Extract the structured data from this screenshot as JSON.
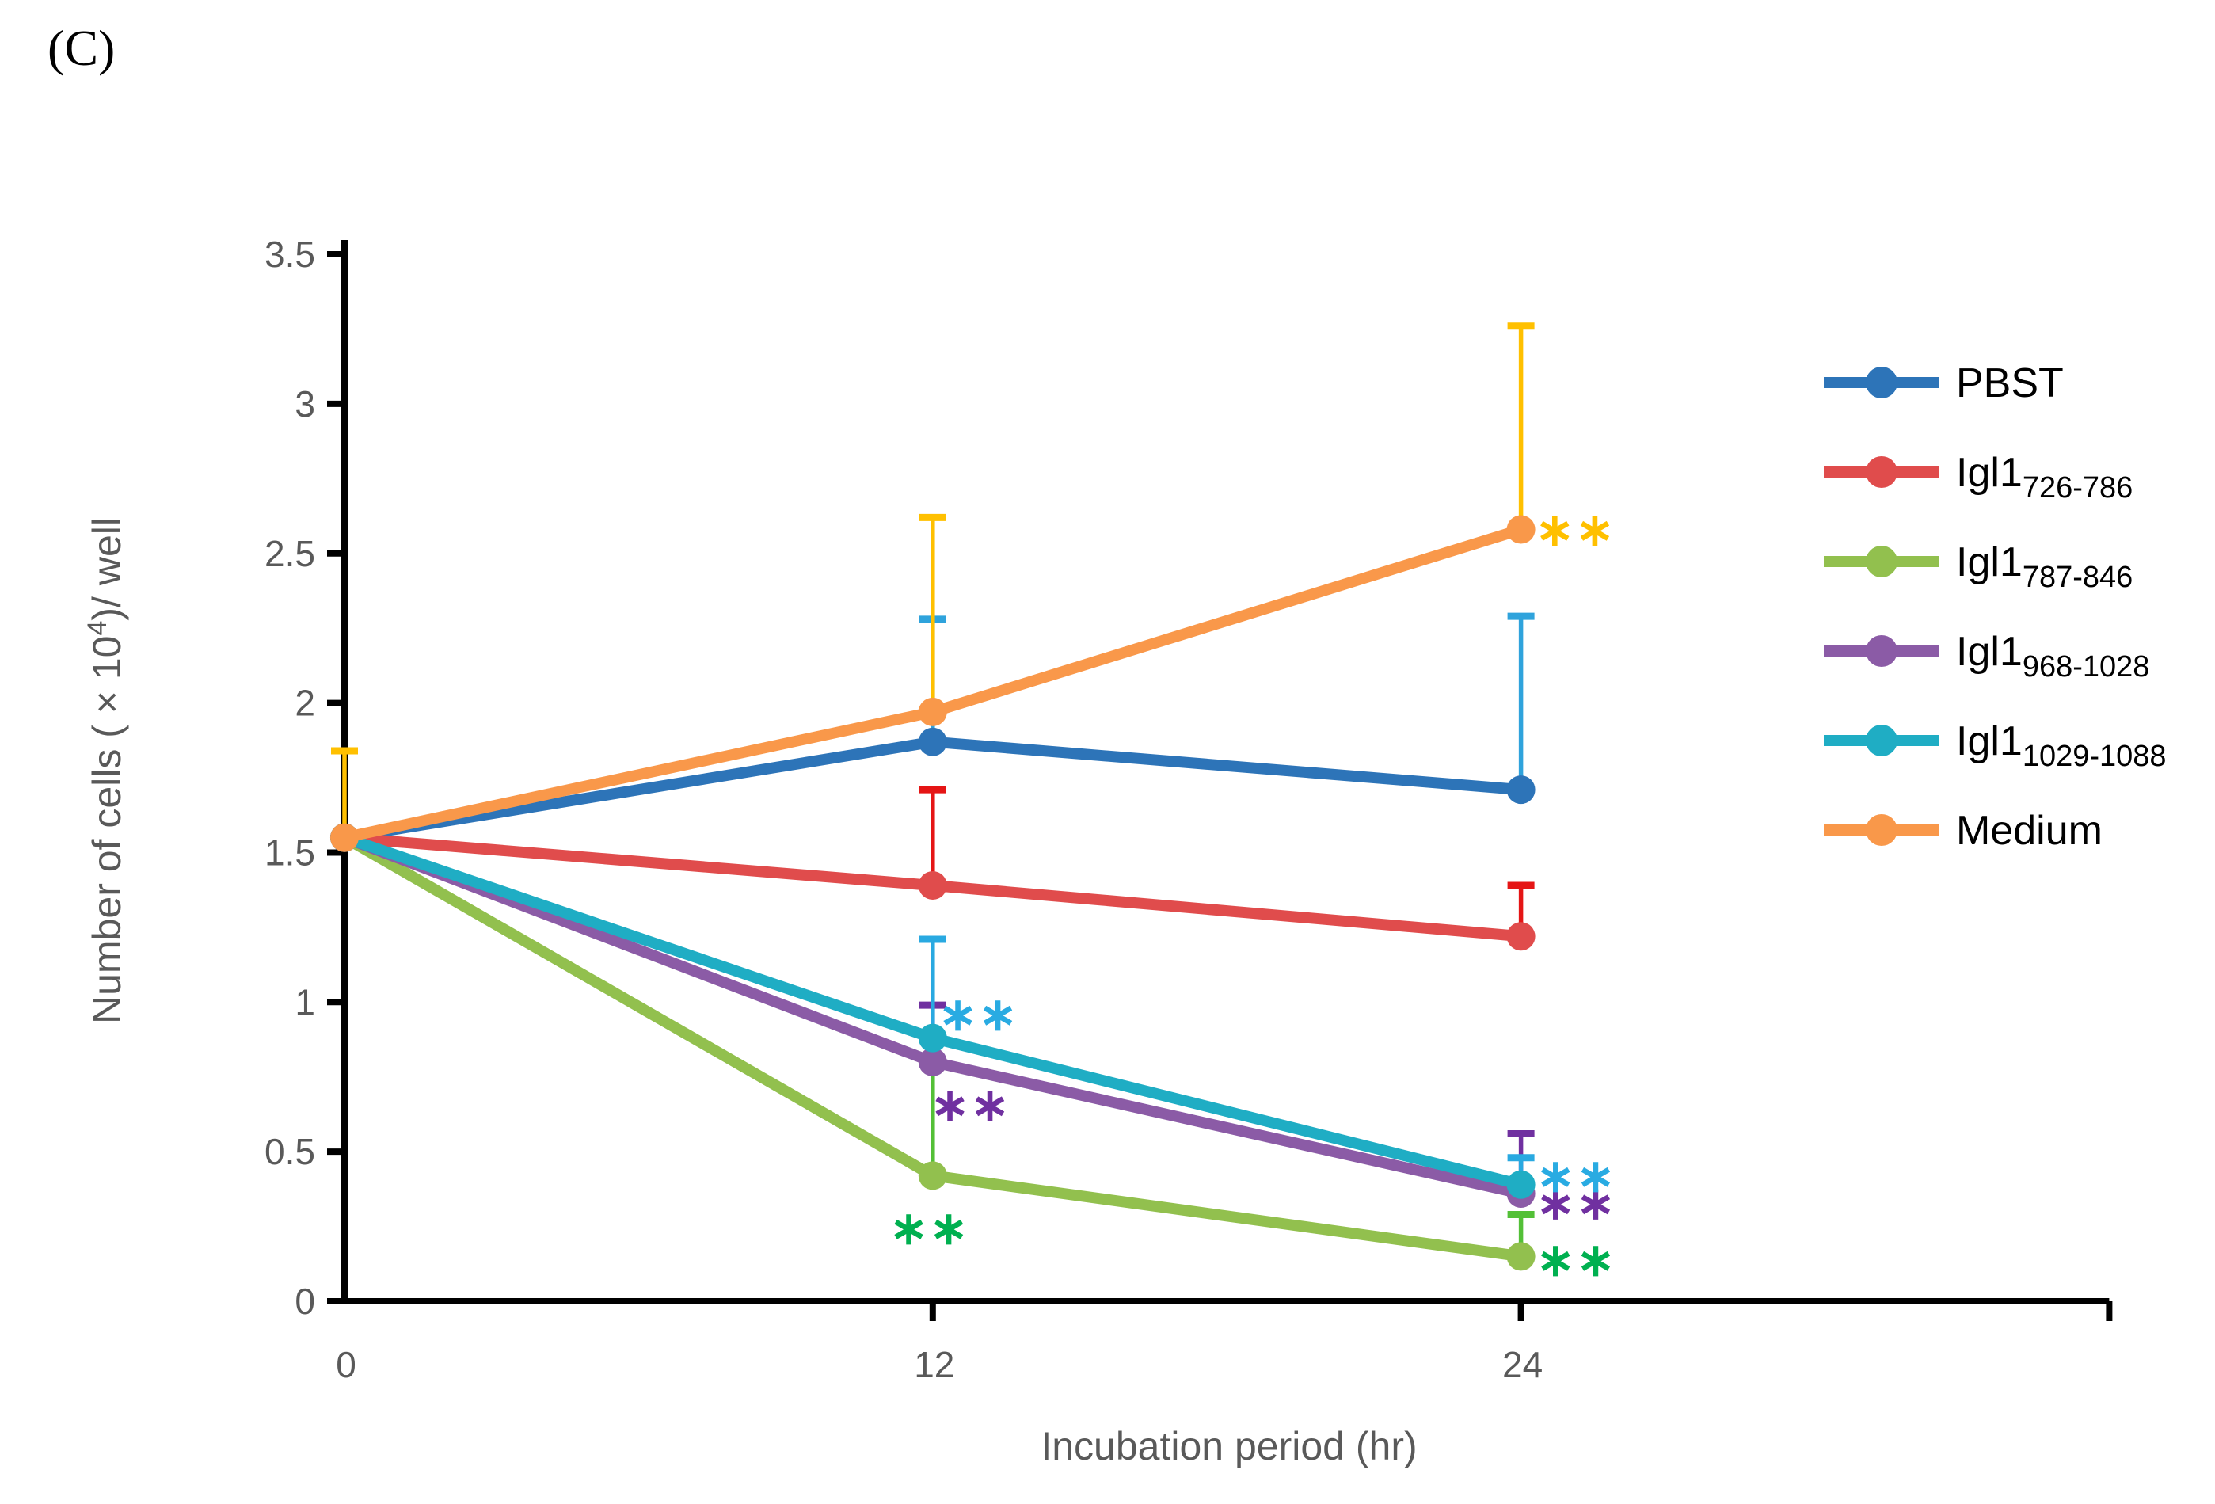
{
  "panel_label": "(C)",
  "chart_data": {
    "type": "line",
    "title": "",
    "xlabel": "Incubation period (hr)",
    "ylabel_parts": {
      "prefix": "Number of cells ( × 10",
      "superscript": "4",
      "suffix": ")/ well"
    },
    "x": [
      0,
      12,
      24
    ],
    "xticks": [
      0,
      12,
      24
    ],
    "yticks": [
      0,
      0.5,
      1,
      1.5,
      2,
      2.5,
      3,
      3.5
    ],
    "ylim": [
      0,
      3.5
    ],
    "xlim_hr": [
      0,
      36
    ],
    "grid": false,
    "legend_position": "right",
    "axis_color": "#000000",
    "tick_label_color": "#595959",
    "series": [
      {
        "name": "PBST",
        "legend": {
          "base": "PBST",
          "sub": ""
        },
        "color": "#2D74B8",
        "error_color": "#2FA3DC",
        "values": [
          1.55,
          1.87,
          1.71
        ],
        "errors_up": [
          null,
          2.28,
          2.29
        ],
        "caps": [
          false,
          true,
          true
        ],
        "annotations": []
      },
      {
        "name": "Igl1 726-786",
        "legend": {
          "base": "Igl1",
          "sub": "726-786"
        },
        "color": "#E04C4C",
        "error_color": "#E51515",
        "values": [
          1.55,
          1.39,
          1.22
        ],
        "errors_up": [
          null,
          1.71,
          1.39
        ],
        "caps": [
          false,
          true,
          true
        ],
        "annotations": []
      },
      {
        "name": "Igl1 787-846",
        "legend": {
          "base": "Igl1",
          "sub": "787-846"
        },
        "color": "#92C04E",
        "error_color": "#53C037",
        "values": [
          1.55,
          0.42,
          0.15
        ],
        "errors_up": [
          null,
          0.8,
          0.29
        ],
        "caps": [
          false,
          false,
          true
        ],
        "annotations": [
          {
            "point": 1,
            "text": "**",
            "color": "#00B050",
            "dx": -4,
            "dy": 66
          },
          {
            "point": 2,
            "text": "**",
            "color": "#00B050",
            "dx": 70,
            "dy": 4
          }
        ]
      },
      {
        "name": "Igl1 968-1028",
        "legend": {
          "base": "Igl1",
          "sub": "968-1028"
        },
        "color": "#8B5BA6",
        "error_color": "#7030A0",
        "values": [
          1.55,
          0.8,
          0.36
        ],
        "errors_up": [
          null,
          0.99,
          0.56
        ],
        "caps": [
          false,
          true,
          true
        ],
        "annotations": [
          {
            "point": 1,
            "text": "**",
            "color": "#7030A0",
            "dx": 48,
            "dy": 54
          },
          {
            "point": 2,
            "text": "**",
            "color": "#7030A0",
            "dx": 70,
            "dy": 12
          }
        ]
      },
      {
        "name": "Igl1 1029-1088",
        "legend": {
          "base": "Igl1",
          "sub": "1029-1088"
        },
        "color": "#1FADC4",
        "error_color": "#29A9E1",
        "values": [
          1.55,
          0.88,
          0.39
        ],
        "errors_up": [
          null,
          1.21,
          0.48
        ],
        "caps": [
          false,
          true,
          true
        ],
        "annotations": [
          {
            "point": 1,
            "text": "**",
            "color": "#29ABE2",
            "dx": 58,
            "dy": -30
          },
          {
            "point": 2,
            "text": "**",
            "color": "#29ABE2",
            "dx": 70,
            "dy": -11
          }
        ]
      },
      {
        "name": "Medium",
        "legend": {
          "base": "Medium",
          "sub": ""
        },
        "color": "#F9984A",
        "error_color": "#FFC000",
        "values": [
          1.55,
          1.97,
          2.58
        ],
        "errors_up": [
          1.84,
          2.62,
          3.26
        ],
        "caps": [
          true,
          true,
          true
        ],
        "annotations": [
          {
            "point": 2,
            "text": "**",
            "color": "#FFC000",
            "dx": 69,
            "dy": 0
          }
        ]
      }
    ]
  }
}
